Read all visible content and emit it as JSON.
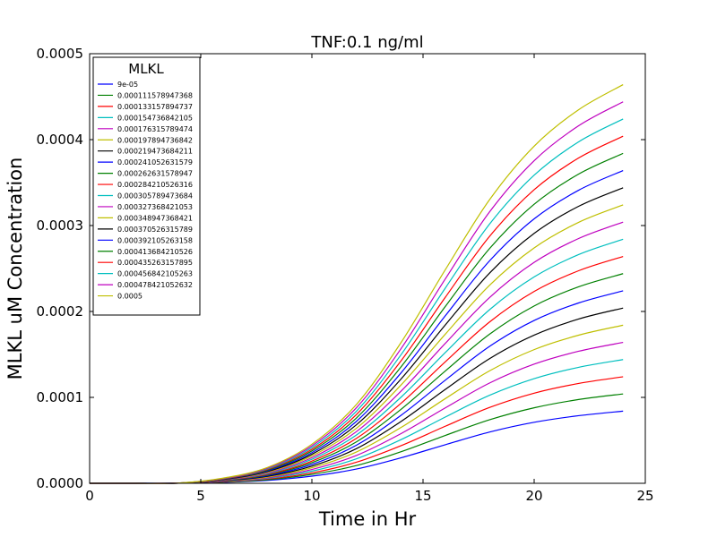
{
  "chart_data": {
    "type": "line",
    "title": "TNF:0.1 ng/ml",
    "xlabel": "Time in Hr",
    "ylabel": "MLKL uM Concentration",
    "xlim": [
      0,
      25
    ],
    "ylim": [
      0,
      0.0005
    ],
    "xticks": [
      0,
      5,
      10,
      15,
      20,
      25
    ],
    "xtick_labels": [
      "0",
      "5",
      "10",
      "15",
      "20",
      "25"
    ],
    "yticks": [
      0,
      0.0001,
      0.0002,
      0.0003,
      0.0004,
      0.0005
    ],
    "ytick_labels": [
      "0.0000",
      "0.0001",
      "0.0002",
      "0.0003",
      "0.0004",
      "0.0005"
    ],
    "grid": false,
    "legend": {
      "title": "MLKL",
      "placement": "top-left"
    },
    "x": [
      0,
      2,
      4,
      6,
      8,
      10,
      12,
      14,
      16,
      18,
      20,
      22,
      24
    ],
    "series": [
      {
        "name": "9e-05",
        "color": "#0000ff",
        "values": [
          0,
          0,
          1e-07,
          1.1e-06,
          3.4e-06,
          8.3e-06,
          1.66e-05,
          2.96e-05,
          4.49e-05,
          5.97e-05,
          7.1e-05,
          7.87e-05,
          8.4e-05
        ]
      },
      {
        "name": "0.000111578947368",
        "color": "#008000",
        "values": [
          0,
          0,
          1e-07,
          1.3e-06,
          4.2e-06,
          1.04e-05,
          2.06e-05,
          3.66e-05,
          5.57e-05,
          7.4e-05,
          8.79e-05,
          9.75e-05,
          0.000104
        ]
      },
      {
        "name": "0.000133157894737",
        "color": "#ff0000",
        "values": [
          0,
          0,
          1e-07,
          1.6e-06,
          5e-06,
          1.22e-05,
          2.45e-05,
          4.37e-05,
          6.64e-05,
          8.83e-05,
          0.0001049,
          0.0001162,
          0.000124
        ]
      },
      {
        "name": "0.000154736842105",
        "color": "#00bfbf",
        "values": [
          0,
          0,
          1e-07,
          1.9e-06,
          5.8e-06,
          1.42e-05,
          2.85e-05,
          5.07e-05,
          7.71e-05,
          0.0001025,
          0.0001218,
          0.000135,
          0.000144
        ]
      },
      {
        "name": "0.000176315789474",
        "color": "#bf00bf",
        "values": [
          0,
          0,
          1e-07,
          2.1e-06,
          6.5e-06,
          1.61e-05,
          3.24e-05,
          5.77e-05,
          8.78e-05,
          0.0001168,
          0.0001387,
          0.0001537,
          0.000164
        ]
      },
      {
        "name": "0.000197894736842",
        "color": "#bfbf00",
        "values": [
          0,
          0,
          1e-07,
          2.4e-06,
          7.3e-06,
          1.81e-05,
          3.64e-05,
          6.48e-05,
          9.85e-05,
          0.000131,
          0.0001556,
          0.0001724,
          0.000184
        ]
      },
      {
        "name": "0.000219473684211",
        "color": "#000000",
        "values": [
          0,
          0,
          1e-07,
          2.6e-06,
          8.1e-06,
          2e-05,
          4.03e-05,
          7.18e-05,
          0.0001092,
          0.0001452,
          0.0001725,
          0.0001912,
          0.000204
        ]
      },
      {
        "name": "0.000241052631579",
        "color": "#0000ff",
        "values": [
          0,
          0,
          2e-07,
          2.9e-06,
          8.9e-06,
          2.2e-05,
          4.43e-05,
          7.89e-05,
          0.00012,
          0.0001595,
          0.0001895,
          0.0002099,
          0.000224
        ]
      },
      {
        "name": "0.000262631578947",
        "color": "#008000",
        "values": [
          0,
          0,
          2e-07,
          3.1e-06,
          9.7e-06,
          2.4e-05,
          4.82e-05,
          8.59e-05,
          0.0001307,
          0.0001737,
          0.0002064,
          0.0002287,
          0.000244
        ]
      },
      {
        "name": "0.000284210526316",
        "color": "#ff0000",
        "values": [
          0,
          0,
          2e-07,
          3.4e-06,
          1.05e-05,
          2.59e-05,
          5.22e-05,
          9.29e-05,
          0.0001414,
          0.0001879,
          0.0002233,
          0.0002474,
          0.000264
        ]
      },
      {
        "name": "0.000305789473684",
        "color": "#00bfbf",
        "values": [
          0,
          0,
          2e-07,
          3.7e-06,
          1.13e-05,
          2.79e-05,
          5.61e-05,
          0.0001,
          0.0001521,
          0.0002022,
          0.0002402,
          0.0002662,
          0.000284
        ]
      },
      {
        "name": "0.000327368421053",
        "color": "#bf00bf",
        "values": [
          0,
          0,
          2e-07,
          3.9e-06,
          1.21e-05,
          2.98e-05,
          6.01e-05,
          0.000107,
          0.0001628,
          0.0002164,
          0.0002571,
          0.0002849,
          0.000304
        ]
      },
      {
        "name": "0.000348947368421",
        "color": "#bfbf00",
        "values": [
          0,
          0,
          2e-07,
          4.2e-06,
          1.29e-05,
          3.18e-05,
          6.4e-05,
          0.0001141,
          0.0001735,
          0.0002307,
          0.000274,
          0.0003037,
          0.000324
        ]
      },
      {
        "name": "0.000370526315789",
        "color": "#000000",
        "values": [
          0,
          0,
          2e-07,
          4.4e-06,
          1.37e-05,
          3.38e-05,
          6.8e-05,
          0.0001211,
          0.0001842,
          0.0002449,
          0.0002909,
          0.0003224,
          0.000344
        ]
      },
      {
        "name": "0.000392105263158",
        "color": "#0000ff",
        "values": [
          0,
          0,
          2e-07,
          4.7e-06,
          1.45e-05,
          3.57e-05,
          7.2e-05,
          0.0001282,
          0.0001949,
          0.0002591,
          0.0003078,
          0.0003411,
          0.000364
        ]
      },
      {
        "name": "0.000413684210526",
        "color": "#008000",
        "values": [
          0,
          0,
          2e-07,
          4.9e-06,
          1.53e-05,
          3.77e-05,
          7.59e-05,
          0.0001352,
          0.0002057,
          0.0002734,
          0.0003248,
          0.0003599,
          0.000384
        ]
      },
      {
        "name": "0.000435263157895",
        "color": "#ff0000",
        "values": [
          0,
          0,
          3e-07,
          5.2e-06,
          1.61e-05,
          3.96e-05,
          7.99e-05,
          0.0001422,
          0.0002164,
          0.0002876,
          0.0003417,
          0.0003786,
          0.000404
        ]
      },
      {
        "name": "0.000456842105263",
        "color": "#00bfbf",
        "values": [
          0,
          0,
          3e-07,
          5.5e-06,
          1.68e-05,
          4.16e-05,
          8.38e-05,
          0.0001493,
          0.0002271,
          0.0003019,
          0.0003586,
          0.0003974,
          0.000424
        ]
      },
      {
        "name": "0.000478421052632",
        "color": "#bf00bf",
        "values": [
          0,
          0,
          3e-07,
          5.7e-06,
          1.76e-05,
          4.36e-05,
          8.78e-05,
          0.0001563,
          0.0002378,
          0.0003161,
          0.0003755,
          0.0004161,
          0.000444
        ]
      },
      {
        "name": "0.0005",
        "color": "#bfbf00",
        "values": [
          0,
          0,
          3e-07,
          6e-06,
          1.84e-05,
          4.55e-05,
          9.17e-05,
          0.0001634,
          0.0002485,
          0.0003303,
          0.0003924,
          0.0004348,
          0.000464
        ]
      }
    ]
  }
}
